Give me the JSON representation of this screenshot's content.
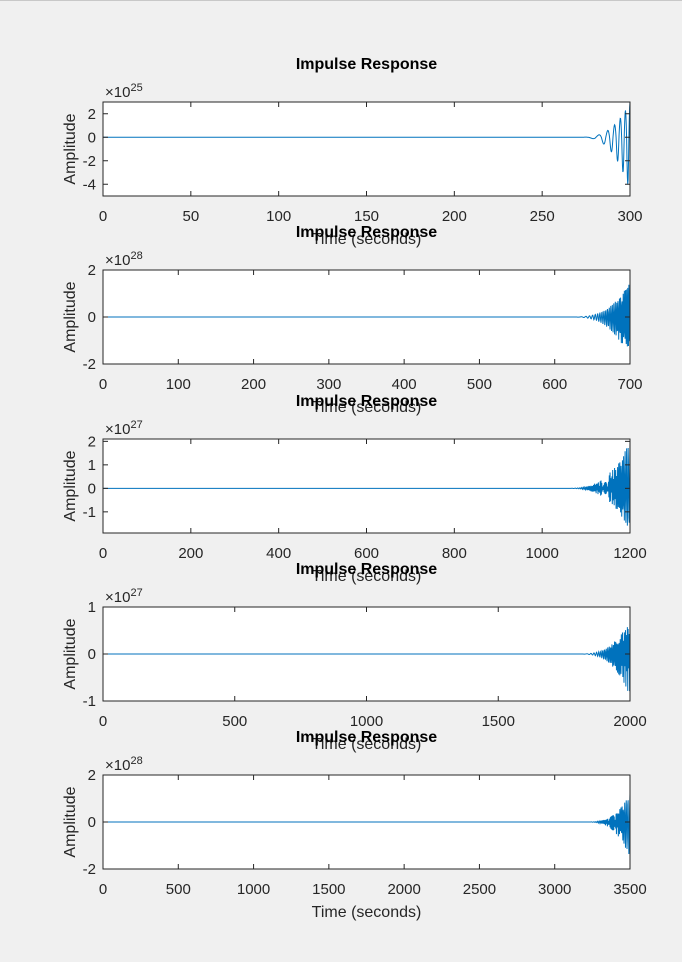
{
  "figure": {
    "background": "#f0f0f0",
    "axes_background": "#ffffff",
    "line_color": "#0072bd",
    "text_color": "#262626"
  },
  "chart_data": [
    {
      "type": "line",
      "title": "Impulse Response",
      "xlabel": "Time (seconds)",
      "ylabel": "Amplitude",
      "exponent_label": "×10",
      "exponent": "25",
      "xlim": [
        0,
        300
      ],
      "ylim": [
        -5,
        3
      ],
      "xticks": [
        "0",
        "50",
        "100",
        "150",
        "200",
        "250",
        "300"
      ],
      "yticks": [
        "2",
        "0",
        "-2",
        "-4"
      ],
      "ytick_values": [
        2,
        0,
        -2,
        -4
      ],
      "grid": false,
      "signal": {
        "onset": 270,
        "end": 300,
        "final_positive": 3.0,
        "final_negative": -4.6,
        "cycles": 6
      }
    },
    {
      "type": "line",
      "title": "Impulse Response",
      "xlabel": "Time (seconds)",
      "ylabel": "Amplitude",
      "exponent_label": "×10",
      "exponent": "28",
      "xlim": [
        0,
        700
      ],
      "ylim": [
        -2,
        2
      ],
      "xticks": [
        "0",
        "100",
        "200",
        "300",
        "400",
        "500",
        "600",
        "700"
      ],
      "yticks": [
        "2",
        "0",
        "-2"
      ],
      "ytick_values": [
        2,
        0,
        -2
      ],
      "grid": false,
      "signal": {
        "onset": 620,
        "end": 700,
        "final_positive": 1.5,
        "final_negative": -1.8,
        "cycles": 28
      }
    },
    {
      "type": "line",
      "title": "Impulse Response",
      "xlabel": "Time (seconds)",
      "ylabel": "Amplitude",
      "exponent_label": "×10",
      "exponent": "27",
      "xlim": [
        0,
        1200
      ],
      "ylim": [
        -1.9,
        2.1
      ],
      "xticks": [
        "0",
        "200",
        "400",
        "600",
        "800",
        "1000",
        "1200"
      ],
      "yticks": [
        "2",
        "1",
        "0",
        "-1"
      ],
      "ytick_values": [
        2,
        1,
        0,
        -1
      ],
      "grid": false,
      "signal": {
        "onset": 1050,
        "end": 1200,
        "final_positive": 2.0,
        "final_negative": -1.8,
        "cycles": 70
      }
    },
    {
      "type": "line",
      "title": "Impulse Response",
      "xlabel": "Time (seconds)",
      "ylabel": "Amplitude",
      "exponent_label": "×10",
      "exponent": "27",
      "xlim": [
        0,
        2000
      ],
      "ylim": [
        -1,
        1
      ],
      "xticks": [
        "0",
        "500",
        "1000",
        "1500",
        "2000"
      ],
      "yticks": [
        "1",
        "0",
        "-1"
      ],
      "ytick_values": [
        1,
        0,
        -1
      ],
      "grid": false,
      "signal": {
        "onset": 1800,
        "end": 2000,
        "final_positive": 0.75,
        "final_negative": -0.9,
        "cycles": 30
      }
    },
    {
      "type": "line",
      "title": "Impulse Response",
      "xlabel": "Time (seconds)",
      "ylabel": "Amplitude",
      "exponent_label": "×10",
      "exponent": "28",
      "xlim": [
        0,
        3500
      ],
      "ylim": [
        -2,
        2
      ],
      "xticks": [
        "0",
        "500",
        "1000",
        "1500",
        "2000",
        "2500",
        "3000",
        "3500"
      ],
      "yticks": [
        "2",
        "0",
        "-2"
      ],
      "ytick_values": [
        2,
        0,
        -2
      ],
      "grid": false,
      "signal": {
        "onset": 3200,
        "end": 3500,
        "final_positive": 1.2,
        "final_negative": -1.5,
        "cycles": 50
      }
    }
  ]
}
